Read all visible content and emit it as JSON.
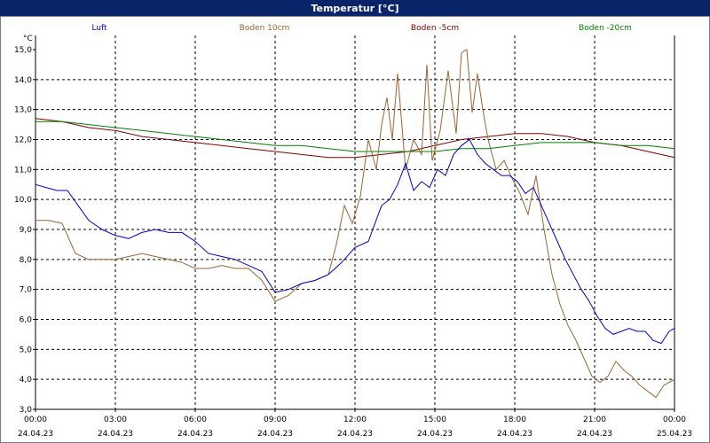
{
  "window": {
    "title": "Temperatur [°C]"
  },
  "chart_data": {
    "type": "line",
    "title": "Temperatur [°C]",
    "ylabel": "°C",
    "ylim": [
      3.0,
      15.0
    ],
    "yticks": [
      "15,0",
      "14,0",
      "13,0",
      "12,0",
      "11,0",
      "10,0",
      "9,0",
      "8,0",
      "7,0",
      "6,0",
      "5,0",
      "4,0",
      "3,0"
    ],
    "xlim": [
      0,
      24
    ],
    "xtick_times": [
      "00:00",
      "03:00",
      "06:00",
      "09:00",
      "12:00",
      "15:00",
      "18:00",
      "21:00",
      "00:00"
    ],
    "xtick_dates": [
      "24.04.23",
      "24.04.23",
      "24.04.23",
      "24.04.23",
      "24.04.23",
      "24.04.23",
      "24.04.23",
      "24.04.23",
      "25.04.23"
    ],
    "grid": true,
    "legend_position": "top",
    "series": [
      {
        "name": "Luft",
        "color": "#0000cc",
        "x": [
          0,
          0.4,
          0.8,
          1.2,
          1.6,
          2,
          2.5,
          3,
          3.5,
          4,
          4.5,
          5,
          5.5,
          6,
          6.5,
          7,
          7.5,
          8,
          8.5,
          9,
          9.5,
          10,
          10.5,
          11,
          11.5,
          12,
          12.5,
          13,
          13.3,
          13.6,
          13.9,
          14.2,
          14.5,
          14.8,
          15.1,
          15.4,
          15.7,
          16,
          16.3,
          16.6,
          16.9,
          17.2,
          17.5,
          17.8,
          18.1,
          18.4,
          18.7,
          19,
          19.3,
          19.6,
          19.9,
          20.2,
          20.5,
          20.8,
          21.1,
          21.4,
          21.7,
          22,
          22.3,
          22.6,
          22.9,
          23.2,
          23.5,
          23.8,
          24
        ],
        "y": [
          10.5,
          10.4,
          10.3,
          10.3,
          9.8,
          9.3,
          9.0,
          8.8,
          8.7,
          8.9,
          9.0,
          8.9,
          8.9,
          8.6,
          8.2,
          8.1,
          8.0,
          7.8,
          7.6,
          6.9,
          7.0,
          7.2,
          7.3,
          7.5,
          7.9,
          8.4,
          8.6,
          9.8,
          10.0,
          10.5,
          11.2,
          10.3,
          10.6,
          10.4,
          11.0,
          10.8,
          11.5,
          11.8,
          12.0,
          11.5,
          11.2,
          11.0,
          10.8,
          10.8,
          10.6,
          10.2,
          10.4,
          9.8,
          9.2,
          8.6,
          8.0,
          7.5,
          7.0,
          6.6,
          6.1,
          5.7,
          5.5,
          5.6,
          5.7,
          5.6,
          5.6,
          5.3,
          5.2,
          5.6,
          5.7
        ]
      },
      {
        "name": "Boden 10cm",
        "color": "#996633",
        "x": [
          0,
          0.5,
          1,
          1.5,
          2,
          2.5,
          3,
          3.5,
          4,
          4.5,
          5,
          5.5,
          6,
          6.5,
          7,
          7.5,
          8,
          8.5,
          9,
          9.5,
          10,
          10.5,
          11,
          11.3,
          11.6,
          11.9,
          12.2,
          12.5,
          12.8,
          13,
          13.2,
          13.4,
          13.6,
          13.9,
          14.2,
          14.5,
          14.7,
          14.9,
          15.2,
          15.5,
          15.8,
          16,
          16.2,
          16.4,
          16.6,
          16.8,
          17,
          17.3,
          17.6,
          17.9,
          18.2,
          18.5,
          18.8,
          19.1,
          19.4,
          19.7,
          20,
          20.3,
          20.6,
          20.9,
          21.2,
          21.5,
          21.8,
          22.1,
          22.4,
          22.7,
          23,
          23.3,
          23.6,
          24
        ],
        "y": [
          9.3,
          9.3,
          9.2,
          8.2,
          8.0,
          8.0,
          8.0,
          8.1,
          8.2,
          8.1,
          8.0,
          7.9,
          7.7,
          7.7,
          7.8,
          7.7,
          7.7,
          7.3,
          6.6,
          6.8,
          7.2,
          7.3,
          7.5,
          8.5,
          9.8,
          9.2,
          10.1,
          12.0,
          11.0,
          12.5,
          13.4,
          12.0,
          14.2,
          11.0,
          12.0,
          11.5,
          14.5,
          11.3,
          12.3,
          14.3,
          12.2,
          14.9,
          15.0,
          12.9,
          14.2,
          13.0,
          12.0,
          11.0,
          11.3,
          10.7,
          10.2,
          9.5,
          10.8,
          9.0,
          7.5,
          6.5,
          5.8,
          5.3,
          4.7,
          4.1,
          3.9,
          4.1,
          4.6,
          4.3,
          4.1,
          3.8,
          3.6,
          3.4,
          3.8,
          4.0
        ]
      },
      {
        "name": "Boden -5cm",
        "color": "#800000",
        "x": [
          0,
          1,
          2,
          3,
          4,
          5,
          6,
          7,
          8,
          9,
          10,
          11,
          12,
          13,
          14,
          15,
          16,
          17,
          18,
          19,
          20,
          21,
          22,
          23,
          24
        ],
        "y": [
          12.7,
          12.6,
          12.4,
          12.3,
          12.1,
          12.0,
          11.9,
          11.8,
          11.7,
          11.6,
          11.5,
          11.4,
          11.4,
          11.5,
          11.6,
          11.8,
          12.0,
          12.1,
          12.2,
          12.2,
          12.1,
          11.9,
          11.8,
          11.6,
          11.4
        ]
      },
      {
        "name": "Boden -20cm",
        "color": "#008000",
        "x": [
          0,
          1,
          2,
          3,
          4,
          5,
          6,
          7,
          8,
          9,
          10,
          11,
          12,
          13,
          14,
          15,
          16,
          17,
          18,
          19,
          20,
          21,
          22,
          23,
          24
        ],
        "y": [
          12.6,
          12.6,
          12.5,
          12.4,
          12.3,
          12.2,
          12.1,
          12.0,
          11.9,
          11.8,
          11.8,
          11.7,
          11.6,
          11.6,
          11.6,
          11.6,
          11.7,
          11.7,
          11.8,
          11.9,
          11.9,
          11.9,
          11.8,
          11.8,
          11.7
        ]
      }
    ]
  }
}
